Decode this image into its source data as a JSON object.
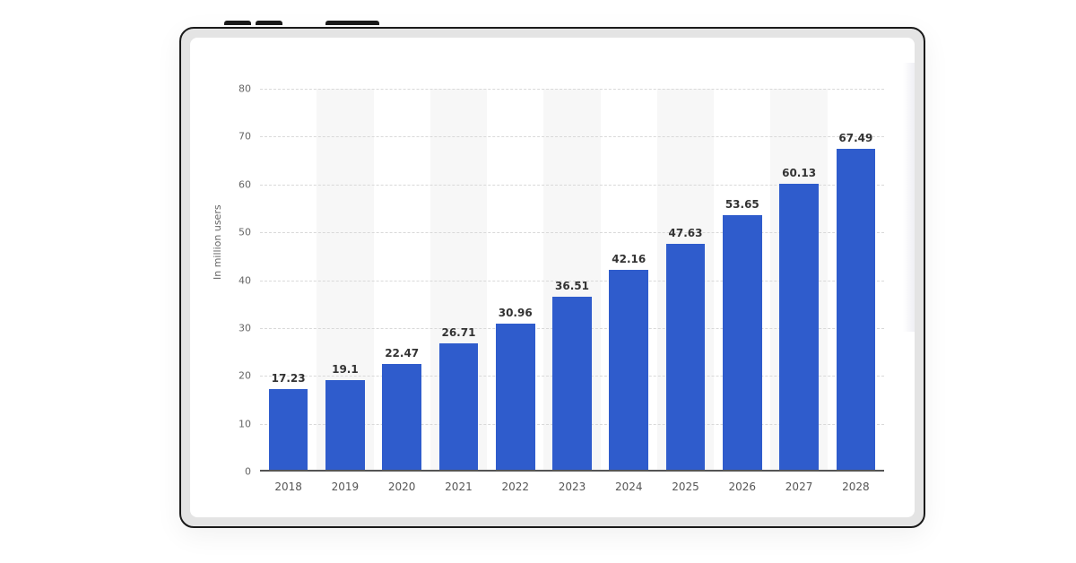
{
  "chart_data": {
    "type": "bar",
    "title": "",
    "xlabel": "",
    "ylabel": "In million users",
    "ylim": [
      0,
      80
    ],
    "yticks": [
      0,
      10,
      20,
      30,
      40,
      50,
      60,
      70,
      80
    ],
    "grid": true,
    "legend": null,
    "categories": [
      "2018",
      "2019",
      "2020",
      "2021",
      "2022",
      "2023",
      "2024",
      "2025",
      "2026",
      "2027",
      "2028"
    ],
    "values": [
      17.23,
      19.1,
      22.47,
      26.71,
      30.96,
      36.51,
      42.16,
      47.63,
      53.65,
      60.13,
      67.49
    ],
    "value_labels": [
      "17.23",
      "19.1",
      "22.47",
      "26.71",
      "30.96",
      "36.51",
      "42.16",
      "47.63",
      "53.65",
      "60.13",
      "67.49"
    ],
    "bar_color": "#2f5ccc"
  }
}
